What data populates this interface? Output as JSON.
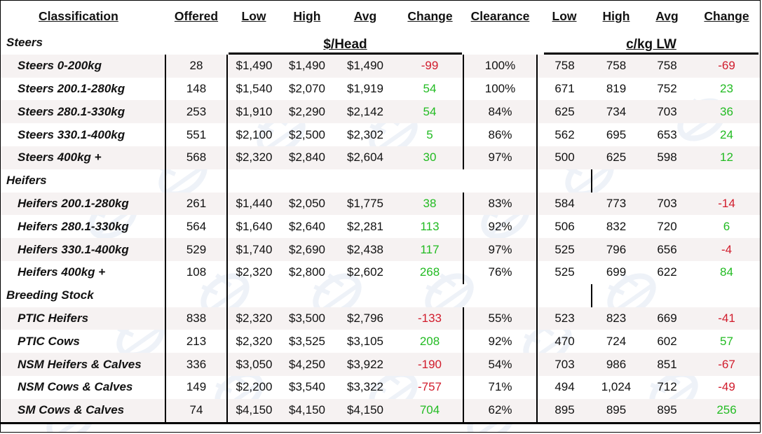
{
  "columns": [
    "Classification",
    "Offered",
    "Low",
    "High",
    "Avg",
    "Change",
    "Clearance",
    "Low",
    "High",
    "Avg",
    "Change"
  ],
  "units": {
    "head": "$/Head",
    "kg": "c/kg LW"
  },
  "groups": [
    {
      "name": "Steers",
      "rows": [
        {
          "cls": "Steers 0-200kg",
          "offered": "28",
          "low": "$1,490",
          "high": "$1,490",
          "avg": "$1,490",
          "change": "-99",
          "clearance": "100%",
          "kg_low": "758",
          "kg_high": "758",
          "kg_avg": "758",
          "kg_change": "-69"
        },
        {
          "cls": "Steers 200.1-280kg",
          "offered": "148",
          "low": "$1,540",
          "high": "$2,070",
          "avg": "$1,919",
          "change": "54",
          "clearance": "100%",
          "kg_low": "671",
          "kg_high": "819",
          "kg_avg": "752",
          "kg_change": "23"
        },
        {
          "cls": "Steers 280.1-330kg",
          "offered": "253",
          "low": "$1,910",
          "high": "$2,290",
          "avg": "$2,142",
          "change": "54",
          "clearance": "84%",
          "kg_low": "625",
          "kg_high": "734",
          "kg_avg": "703",
          "kg_change": "36"
        },
        {
          "cls": "Steers 330.1-400kg",
          "offered": "551",
          "low": "$2,100",
          "high": "$2,500",
          "avg": "$2,302",
          "change": "5",
          "clearance": "86%",
          "kg_low": "562",
          "kg_high": "695",
          "kg_avg": "653",
          "kg_change": "24"
        },
        {
          "cls": "Steers 400kg +",
          "offered": "568",
          "low": "$2,320",
          "high": "$2,840",
          "avg": "$2,604",
          "change": "30",
          "clearance": "97%",
          "kg_low": "500",
          "kg_high": "625",
          "kg_avg": "598",
          "kg_change": "12"
        }
      ]
    },
    {
      "name": "Heifers",
      "rows": [
        {
          "cls": "Heifers 200.1-280kg",
          "offered": "261",
          "low": "$1,440",
          "high": "$2,050",
          "avg": "$1,775",
          "change": "38",
          "clearance": "83%",
          "kg_low": "584",
          "kg_high": "773",
          "kg_avg": "703",
          "kg_change": "-14"
        },
        {
          "cls": "Heifers 280.1-330kg",
          "offered": "564",
          "low": "$1,640",
          "high": "$2,640",
          "avg": "$2,281",
          "change": "113",
          "clearance": "92%",
          "kg_low": "506",
          "kg_high": "832",
          "kg_avg": "720",
          "kg_change": "6"
        },
        {
          "cls": "Heifers 330.1-400kg",
          "offered": "529",
          "low": "$1,740",
          "high": "$2,690",
          "avg": "$2,438",
          "change": "117",
          "clearance": "97%",
          "kg_low": "525",
          "kg_high": "796",
          "kg_avg": "656",
          "kg_change": "-4"
        },
        {
          "cls": "Heifers 400kg +",
          "offered": "108",
          "low": "$2,320",
          "high": "$2,800",
          "avg": "$2,602",
          "change": "268",
          "clearance": "76%",
          "kg_low": "525",
          "kg_high": "699",
          "kg_avg": "622",
          "kg_change": "84"
        }
      ]
    },
    {
      "name": "Breeding Stock",
      "rows": [
        {
          "cls": "PTIC Heifers",
          "offered": "838",
          "low": "$2,320",
          "high": "$3,500",
          "avg": "$2,796",
          "change": "-133",
          "clearance": "55%",
          "kg_low": "523",
          "kg_high": "823",
          "kg_avg": "669",
          "kg_change": "-41"
        },
        {
          "cls": "PTIC Cows",
          "offered": "213",
          "low": "$2,320",
          "high": "$3,525",
          "avg": "$3,105",
          "change": "208",
          "clearance": "92%",
          "kg_low": "470",
          "kg_high": "724",
          "kg_avg": "602",
          "kg_change": "57"
        },
        {
          "cls": "NSM Heifers & Calves",
          "offered": "336",
          "low": "$3,050",
          "high": "$4,250",
          "avg": "$3,922",
          "change": "-190",
          "clearance": "54%",
          "kg_low": "703",
          "kg_high": "986",
          "kg_avg": "851",
          "kg_change": "-67"
        },
        {
          "cls": "NSM Cows & Calves",
          "offered": "149",
          "low": "$2,200",
          "high": "$3,540",
          "avg": "$3,322",
          "change": "-757",
          "clearance": "71%",
          "kg_low": "494",
          "kg_high": "1,024",
          "kg_avg": "712",
          "kg_change": "-49"
        },
        {
          "cls": "SM Cows & Calves",
          "offered": "74",
          "low": "$4,150",
          "high": "$4,150",
          "avg": "$4,150",
          "change": "704",
          "clearance": "62%",
          "kg_low": "895",
          "kg_high": "895",
          "kg_avg": "895",
          "kg_change": "256"
        }
      ]
    }
  ],
  "colors": {
    "positive": "#22bb22",
    "negative": "#d11c2c",
    "shade": "#f6f2f2",
    "watermark": "#c9d5e8"
  },
  "watermark_icon": "logo-watermark-icon"
}
